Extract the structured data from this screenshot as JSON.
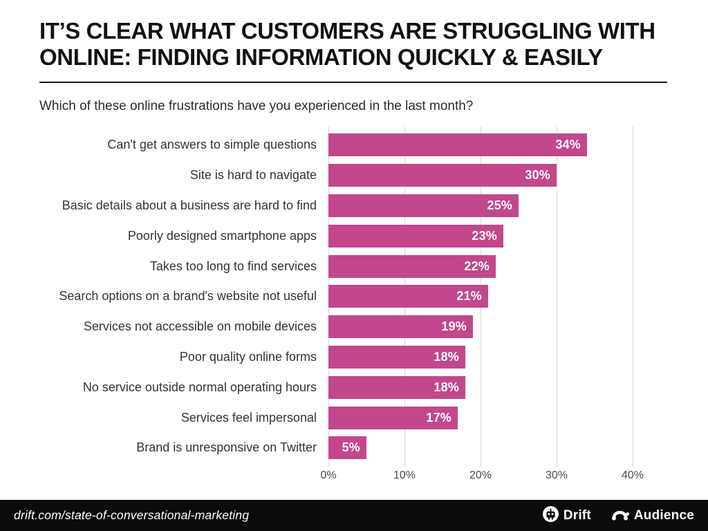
{
  "header": {
    "title_line1": "IT’S CLEAR WHAT CUSTOMERS ARE STRUGGLING WITH",
    "title_line2": "ONLINE: FINDING INFORMATION QUICKLY & EASILY",
    "subtitle": "Which of these online frustrations have you experienced in the last month?"
  },
  "chart_data": {
    "type": "bar",
    "orientation": "horizontal",
    "title": "Which of these online frustrations have you experienced in the last month?",
    "categories": [
      "Can't get answers to simple questions",
      "Site is hard to navigate",
      "Basic details about a business are hard to find",
      "Poorly designed smartphone apps",
      "Takes too long to find services",
      "Search options on a brand's website not useful",
      "Services not accessible on mobile devices",
      "Poor quality online forms",
      "No service outside normal operating hours",
      "Services feel impersonal",
      "Brand is unresponsive on Twitter"
    ],
    "values": [
      34,
      30,
      25,
      23,
      22,
      21,
      19,
      18,
      18,
      17,
      5
    ],
    "value_labels": [
      "34%",
      "30%",
      "25%",
      "23%",
      "22%",
      "21%",
      "19%",
      "18%",
      "18%",
      "17%",
      "5%"
    ],
    "x_ticks": [
      "0%",
      "10%",
      "20%",
      "30%",
      "40%"
    ],
    "x_tick_values": [
      0,
      10,
      20,
      30,
      40
    ],
    "xlim": [
      0,
      40
    ],
    "grid": true,
    "bar_color": "#c2478c",
    "value_label_color": "#ffffff",
    "gridline_color": "#d8d8d8"
  },
  "footer": {
    "link": "drift.com/state-of-conversational-marketing",
    "background": "#0b0b0b",
    "logos": [
      {
        "label": "Drift"
      },
      {
        "label": "Audience"
      }
    ]
  }
}
